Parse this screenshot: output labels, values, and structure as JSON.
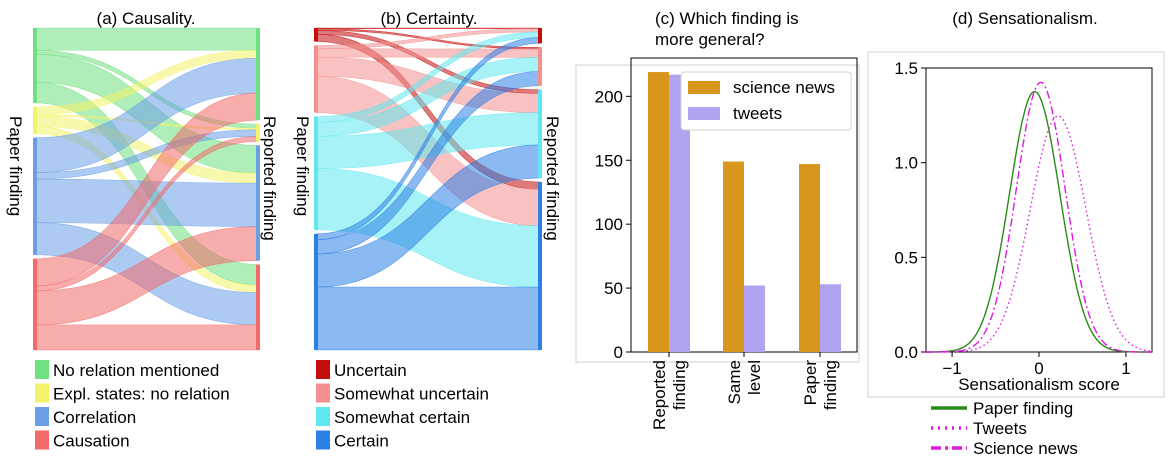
{
  "panels": {
    "a": {
      "title": "(a) Causality.",
      "left_label": "Paper finding",
      "right_label": "Reported finding"
    },
    "b": {
      "title": "(b) Certainty.",
      "left_label": "Paper finding",
      "right_label": "Reported finding"
    },
    "c": {
      "title_line1": "(c) Which finding is",
      "title_line2": "more general?"
    },
    "d": {
      "title": "(d) Sensationalism."
    }
  },
  "colors": {
    "no_relation": "#6fe07f",
    "expl_no_relation": "#f3f36a",
    "correlation": "#6a9fe8",
    "causation": "#f26a6a",
    "uncertain": "#c40d0d",
    "somewhat_uncertain": "#f49090",
    "somewhat_certain": "#5ee7ef",
    "certain": "#2b7fe6",
    "science_news": "#d9961d",
    "tweets": "#b1a2ef",
    "paper_kde": "#2a8a1a",
    "pink": "#e11ae1"
  },
  "chart_data": [
    {
      "type": "sankey",
      "panel": "a",
      "legend": [
        "No relation mentioned",
        "Expl. states: no relation",
        "Correlation",
        "Causation"
      ],
      "left_nodes": [
        {
          "name": "No relation mentioned",
          "value": 78
        },
        {
          "name": "Expl. states: no relation",
          "value": 28
        },
        {
          "name": "Correlation",
          "value": 122
        },
        {
          "name": "Causation",
          "value": 95
        }
      ],
      "right_nodes": [
        {
          "name": "No relation mentioned",
          "value": 96
        },
        {
          "name": "Expl. states: no relation",
          "value": 18
        },
        {
          "name": "Correlation",
          "value": 120
        },
        {
          "name": "Causation",
          "value": 89
        }
      ]
    },
    {
      "type": "sankey",
      "panel": "b",
      "legend": [
        "Uncertain",
        "Somewhat uncertain",
        "Somewhat certain",
        "Certain"
      ],
      "left_nodes": [
        {
          "name": "Uncertain",
          "value": 14
        },
        {
          "name": "Somewhat uncertain",
          "value": 70
        },
        {
          "name": "Somewhat certain",
          "value": 118
        },
        {
          "name": "Certain",
          "value": 121
        }
      ],
      "right_nodes": [
        {
          "name": "Uncertain",
          "value": 16
        },
        {
          "name": "Somewhat uncertain",
          "value": 40
        },
        {
          "name": "Somewhat certain",
          "value": 92
        },
        {
          "name": "Certain",
          "value": 175
        }
      ]
    },
    {
      "type": "bar",
      "panel": "c",
      "categories": [
        "Reported finding",
        "Same level",
        "Paper finding"
      ],
      "series": [
        {
          "name": "science news",
          "values": [
            219,
            149,
            147
          ]
        },
        {
          "name": "tweets",
          "values": [
            217,
            52,
            53
          ]
        }
      ],
      "ylim": [
        0,
        230
      ],
      "yticks": [
        0,
        50,
        100,
        150,
        200
      ],
      "legend_position": "top-right"
    },
    {
      "type": "line",
      "panel": "d",
      "xlabel": "Sensationalism score",
      "xlim": [
        -1.3,
        1.3
      ],
      "ylim": [
        0,
        1.5
      ],
      "xticks": [
        -1,
        0,
        1
      ],
      "yticks": [
        0.0,
        0.5,
        1.0,
        1.5
      ],
      "legend_position": "bottom",
      "series": [
        {
          "name": "Paper finding",
          "style": "solid",
          "mean": -0.05,
          "sd": 0.29
        },
        {
          "name": "Tweets",
          "style": "dotted",
          "mean": 0.22,
          "sd": 0.32
        },
        {
          "name": "Science news",
          "style": "dashdot",
          "mean": 0.02,
          "sd": 0.28
        }
      ]
    }
  ]
}
